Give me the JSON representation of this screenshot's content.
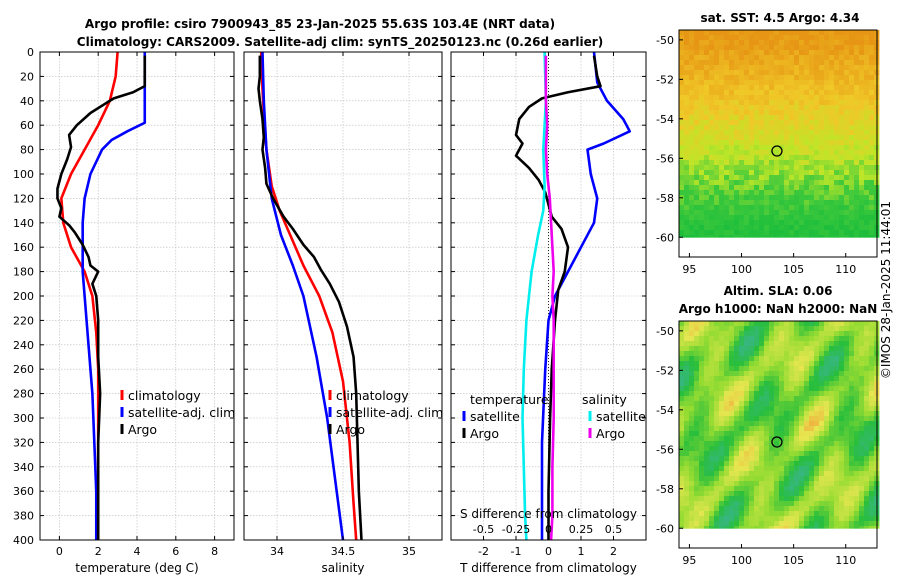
{
  "figure": {
    "title_line1": "Argo profile: csiro 7900943_85 23-Jan-2025 55.63S 103.4E (NRT data)",
    "title_line2": "Climatology: CARS2009. Satellite-adj clim: synTS_20250123.nc (0.26d earlier)",
    "credit": "©IMOS 28-Jan-2025 11:44:01"
  },
  "colors": {
    "red": "#ff0000",
    "blue": "#0000ff",
    "black": "#000000",
    "cyan": "#00eeee",
    "magenta": "#ee00ee",
    "grid": "#bbbbbb"
  },
  "chart_data": [
    {
      "id": "temperature",
      "type": "line",
      "xlabel": "temperature (deg C)",
      "ylabel": "",
      "xlim": [
        -1,
        9
      ],
      "ylim": [
        0,
        400
      ],
      "xticks": [
        0,
        2,
        4,
        6,
        8
      ],
      "xtick_labels": [
        "0",
        "2",
        "4",
        "6",
        "8"
      ],
      "yticks": [
        0,
        20,
        40,
        60,
        80,
        100,
        120,
        140,
        160,
        180,
        200,
        220,
        240,
        260,
        280,
        300,
        320,
        340,
        360,
        380,
        400
      ],
      "legend": [
        "climatology",
        "satellite-adj. clim",
        "Argo"
      ],
      "series": [
        {
          "name": "climatology",
          "color": "red",
          "points": [
            [
              3.0,
              0
            ],
            [
              2.9,
              20
            ],
            [
              2.6,
              40
            ],
            [
              2.0,
              60
            ],
            [
              1.3,
              80
            ],
            [
              0.6,
              100
            ],
            [
              0.1,
              120
            ],
            [
              0.2,
              140
            ],
            [
              0.6,
              160
            ],
            [
              1.3,
              180
            ],
            [
              1.7,
              200
            ],
            [
              1.9,
              230
            ],
            [
              2.0,
              260
            ],
            [
              2.0,
              300
            ],
            [
              2.0,
              340
            ],
            [
              2.0,
              380
            ],
            [
              2.0,
              400
            ]
          ]
        },
        {
          "name": "satellite-adj. clim",
          "color": "blue",
          "points": [
            [
              4.4,
              0
            ],
            [
              4.4,
              40
            ],
            [
              4.4,
              58
            ],
            [
              3.5,
              65
            ],
            [
              2.7,
              72
            ],
            [
              2.2,
              80
            ],
            [
              1.6,
              100
            ],
            [
              1.3,
              120
            ],
            [
              1.2,
              140
            ],
            [
              1.2,
              160
            ],
            [
              1.2,
              180
            ],
            [
              1.3,
              200
            ],
            [
              1.5,
              240
            ],
            [
              1.7,
              280
            ],
            [
              1.8,
              320
            ],
            [
              1.9,
              360
            ],
            [
              1.9,
              400
            ]
          ]
        },
        {
          "name": "Argo",
          "color": "black",
          "points": [
            [
              4.4,
              3
            ],
            [
              4.4,
              20
            ],
            [
              4.4,
              28
            ],
            [
              3.8,
              33
            ],
            [
              2.8,
              38
            ],
            [
              2.3,
              43
            ],
            [
              1.6,
              50
            ],
            [
              0.9,
              60
            ],
            [
              0.5,
              68
            ],
            [
              0.6,
              78
            ],
            [
              0.4,
              88
            ],
            [
              0.1,
              100
            ],
            [
              -0.1,
              112
            ],
            [
              -0.1,
              120
            ],
            [
              0.1,
              128
            ],
            [
              0.0,
              135
            ],
            [
              0.5,
              142
            ],
            [
              0.8,
              148
            ],
            [
              1.2,
              158
            ],
            [
              1.5,
              168
            ],
            [
              1.6,
              175
            ],
            [
              2.0,
              180
            ],
            [
              1.7,
              190
            ],
            [
              1.9,
              200
            ],
            [
              2.0,
              220
            ],
            [
              2.0,
              250
            ],
            [
              2.1,
              280
            ],
            [
              2.0,
              320
            ],
            [
              2.0,
              360
            ],
            [
              2.0,
              400
            ]
          ]
        }
      ]
    },
    {
      "id": "salinity",
      "type": "line",
      "xlabel": "salinity",
      "ylabel": "",
      "xlim": [
        33.75,
        35.25
      ],
      "ylim": [
        0,
        400
      ],
      "xticks": [
        34,
        34.5,
        35
      ],
      "xtick_labels": [
        "34",
        "34.5",
        "35"
      ],
      "legend": [
        "climatology",
        "satellite-adj. clim",
        "Argo"
      ],
      "series": [
        {
          "name": "climatology",
          "color": "red",
          "points": [
            [
              33.88,
              0
            ],
            [
              33.89,
              30
            ],
            [
              33.9,
              50
            ],
            [
              33.92,
              80
            ],
            [
              33.96,
              110
            ],
            [
              34.02,
              130
            ],
            [
              34.1,
              150
            ],
            [
              34.2,
              175
            ],
            [
              34.32,
              200
            ],
            [
              34.42,
              230
            ],
            [
              34.5,
              270
            ],
            [
              34.55,
              320
            ],
            [
              34.58,
              370
            ],
            [
              34.6,
              400
            ]
          ]
        },
        {
          "name": "satellite-adj. clim",
          "color": "blue",
          "points": [
            [
              33.89,
              0
            ],
            [
              33.9,
              40
            ],
            [
              33.92,
              80
            ],
            [
              33.96,
              120
            ],
            [
              34.03,
              150
            ],
            [
              34.12,
              175
            ],
            [
              34.2,
              200
            ],
            [
              34.3,
              250
            ],
            [
              34.38,
              300
            ],
            [
              34.44,
              350
            ],
            [
              34.5,
              400
            ]
          ]
        },
        {
          "name": "Argo",
          "color": "black",
          "points": [
            [
              33.87,
              3
            ],
            [
              33.87,
              20
            ],
            [
              33.86,
              30
            ],
            [
              33.87,
              40
            ],
            [
              33.89,
              55
            ],
            [
              33.9,
              70
            ],
            [
              33.89,
              80
            ],
            [
              33.91,
              95
            ],
            [
              33.92,
              108
            ],
            [
              33.97,
              120
            ],
            [
              34.05,
              135
            ],
            [
              34.12,
              145
            ],
            [
              34.2,
              158
            ],
            [
              34.28,
              168
            ],
            [
              34.33,
              178
            ],
            [
              34.4,
              190
            ],
            [
              34.47,
              205
            ],
            [
              34.53,
              225
            ],
            [
              34.58,
              250
            ],
            [
              34.6,
              280
            ],
            [
              34.61,
              320
            ],
            [
              34.62,
              360
            ],
            [
              34.64,
              400
            ]
          ]
        }
      ]
    },
    {
      "id": "difference",
      "type": "line",
      "xlabel": "T difference from climatology",
      "top_label": "S difference from climatology",
      "xlim": [
        -3,
        3
      ],
      "ylim": [
        0,
        400
      ],
      "xticks": [
        -2,
        -1,
        0,
        1,
        2
      ],
      "xtick_labels": [
        "-2",
        "-1",
        "0",
        "1",
        "2"
      ],
      "s_ticks": [
        -0.5,
        -0.25,
        0,
        0.25,
        0.5
      ],
      "s_tick_labels": [
        "-0.5",
        "-0.25",
        "0",
        "0.25",
        "0.5"
      ],
      "legend_temperature": "temperature",
      "legend_salinity": "salinity",
      "legend_items": [
        "satellite",
        "Argo",
        "satellite",
        "Argo"
      ],
      "series": [
        {
          "name": "T satellite",
          "color": "blue",
          "points": [
            [
              1.4,
              0
            ],
            [
              1.5,
              25
            ],
            [
              1.8,
              40
            ],
            [
              2.3,
              55
            ],
            [
              2.5,
              65
            ],
            [
              1.7,
              75
            ],
            [
              1.2,
              80
            ],
            [
              1.3,
              100
            ],
            [
              1.5,
              120
            ],
            [
              1.4,
              140
            ],
            [
              1.0,
              160
            ],
            [
              0.6,
              180
            ],
            [
              0.2,
              200
            ],
            [
              0.0,
              220
            ],
            [
              -0.1,
              260
            ],
            [
              -0.2,
              320
            ],
            [
              -0.2,
              400
            ]
          ]
        },
        {
          "name": "T Argo",
          "color": "black",
          "points": [
            [
              1.4,
              3
            ],
            [
              1.5,
              20
            ],
            [
              1.6,
              28
            ],
            [
              0.6,
              33
            ],
            [
              -0.2,
              38
            ],
            [
              -0.6,
              45
            ],
            [
              -0.9,
              55
            ],
            [
              -1.0,
              68
            ],
            [
              -0.8,
              75
            ],
            [
              -1.0,
              85
            ],
            [
              -0.6,
              95
            ],
            [
              -0.3,
              105
            ],
            [
              -0.1,
              115
            ],
            [
              0.0,
              125
            ],
            [
              0.1,
              135
            ],
            [
              0.4,
              145
            ],
            [
              0.6,
              160
            ],
            [
              0.5,
              180
            ],
            [
              0.3,
              195
            ],
            [
              0.2,
              220
            ],
            [
              0.1,
              260
            ],
            [
              0.05,
              300
            ],
            [
              0.0,
              360
            ],
            [
              0.0,
              400
            ]
          ]
        },
        {
          "name": "S satellite",
          "color": "cyan",
          "points": [
            [
              -0.03,
              0
            ],
            [
              -0.02,
              40
            ],
            [
              -0.04,
              80
            ],
            [
              -0.03,
              110
            ],
            [
              -0.04,
              130
            ],
            [
              -0.08,
              150
            ],
            [
              -0.13,
              180
            ],
            [
              -0.17,
              220
            ],
            [
              -0.19,
              260
            ],
            [
              -0.2,
              300
            ],
            [
              -0.19,
              340
            ],
            [
              -0.18,
              380
            ],
            [
              -0.17,
              400
            ]
          ]
        },
        {
          "name": "S Argo",
          "color": "magenta",
          "points": [
            [
              -0.02,
              3
            ],
            [
              -0.02,
              40
            ],
            [
              -0.01,
              60
            ],
            [
              -0.02,
              80
            ],
            [
              -0.01,
              100
            ],
            [
              0.01,
              120
            ],
            [
              0.02,
              140
            ],
            [
              0.03,
              160
            ],
            [
              0.04,
              180
            ],
            [
              0.03,
              200
            ],
            [
              0.04,
              220
            ],
            [
              0.04,
              260
            ],
            [
              0.04,
              300
            ],
            [
              0.03,
              340
            ],
            [
              0.03,
              380
            ],
            [
              0.02,
              400
            ]
          ]
        }
      ]
    }
  ],
  "maps": [
    {
      "id": "sst",
      "title": "sat. SST: 4.5 Argo: 4.34",
      "xlim": [
        94,
        113
      ],
      "ylim": [
        -61,
        -49.5
      ],
      "xticks": [
        95,
        100,
        105,
        110
      ],
      "yticks": [
        -50,
        -52,
        -54,
        -56,
        -58,
        -60
      ],
      "profile_lon": 103.4,
      "profile_lat": -55.63,
      "data_lat_min": -60
    },
    {
      "id": "sla",
      "title_line1": "Altim. SLA: 0.06",
      "title_line2": "Argo h1000: NaN h2000: NaN",
      "xlim": [
        94,
        113
      ],
      "ylim": [
        -61,
        -49.5
      ],
      "xticks": [
        95,
        100,
        105,
        110
      ],
      "yticks": [
        -50,
        -52,
        -54,
        -56,
        -58,
        -60
      ],
      "profile_lon": 103.4,
      "profile_lat": -55.63,
      "data_lat_min": -60
    }
  ]
}
